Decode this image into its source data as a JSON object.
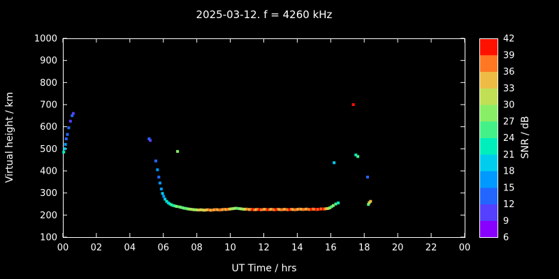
{
  "chart_data": {
    "type": "scatter",
    "title": "2025-03-12. f = 4260 kHz",
    "xlabel": "UT Time / hrs",
    "ylabel": "Virtual height / km",
    "x_range": [
      0,
      24
    ],
    "y_range": [
      100,
      1000
    ],
    "x_tick_values": [
      0,
      2,
      4,
      6,
      8,
      10,
      12,
      14,
      16,
      18,
      20,
      22,
      24
    ],
    "x_tick_labels": [
      "00",
      "02",
      "04",
      "06",
      "08",
      "10",
      "12",
      "14",
      "16",
      "18",
      "20",
      "22",
      "00"
    ],
    "y_tick_values": [
      100,
      200,
      300,
      400,
      500,
      600,
      700,
      800,
      900,
      1000
    ],
    "colors": {
      "background": "#000000",
      "foreground": "#ffffff",
      "frame": "#ffffff"
    },
    "colorbar": {
      "label": "SNR / dB",
      "min": 6,
      "max": 42,
      "step": 3,
      "ticks": [
        42,
        39,
        36,
        33,
        30,
        27,
        24,
        21,
        18,
        15,
        12,
        9,
        6
      ],
      "band_colors": [
        "#8800ff",
        "#5540ff",
        "#2266ff",
        "#0099ff",
        "#00ccee",
        "#00eebb",
        "#44f188",
        "#88ee66",
        "#c0df55",
        "#eebb44",
        "#ff7722",
        "#ff1100"
      ]
    },
    "points": [
      [
        0.05,
        485,
        21
      ],
      [
        0.1,
        500,
        18
      ],
      [
        0.15,
        520,
        15
      ],
      [
        0.2,
        545,
        12
      ],
      [
        0.27,
        565,
        12
      ],
      [
        0.35,
        595,
        12
      ],
      [
        0.45,
        625,
        9
      ],
      [
        0.55,
        650,
        12
      ],
      [
        0.62,
        660,
        9
      ],
      [
        5.15,
        545,
        12
      ],
      [
        5.22,
        538,
        9
      ],
      [
        5.55,
        445,
        12
      ],
      [
        5.65,
        405,
        15
      ],
      [
        5.73,
        372,
        12
      ],
      [
        5.8,
        345,
        15
      ],
      [
        5.88,
        318,
        15
      ],
      [
        5.95,
        298,
        18
      ],
      [
        6.02,
        285,
        15
      ],
      [
        6.1,
        272,
        18
      ],
      [
        6.2,
        262,
        21
      ],
      [
        6.3,
        255,
        18
      ],
      [
        6.4,
        250,
        21
      ],
      [
        6.5,
        246,
        24
      ],
      [
        6.6,
        243,
        21
      ],
      [
        6.7,
        241,
        24
      ],
      [
        6.8,
        239,
        27
      ],
      [
        6.85,
        488,
        27
      ],
      [
        6.95,
        237,
        24
      ],
      [
        7.05,
        235,
        27
      ],
      [
        7.15,
        233,
        24
      ],
      [
        7.25,
        231,
        27
      ],
      [
        7.35,
        230,
        24
      ],
      [
        7.45,
        228,
        27
      ],
      [
        7.55,
        227,
        27
      ],
      [
        7.65,
        226,
        30
      ],
      [
        7.75,
        225,
        27
      ],
      [
        7.85,
        224,
        30
      ],
      [
        7.95,
        224,
        27
      ],
      [
        8.05,
        223,
        30
      ],
      [
        8.15,
        223,
        33
      ],
      [
        8.25,
        224,
        30
      ],
      [
        8.35,
        223,
        33
      ],
      [
        8.45,
        222,
        30
      ],
      [
        8.55,
        223,
        33
      ],
      [
        8.65,
        224,
        33
      ],
      [
        8.75,
        223,
        36
      ],
      [
        8.85,
        222,
        33
      ],
      [
        8.95,
        223,
        36
      ],
      [
        9.05,
        224,
        33
      ],
      [
        9.15,
        225,
        36
      ],
      [
        9.25,
        224,
        33
      ],
      [
        9.35,
        223,
        36
      ],
      [
        9.45,
        224,
        36
      ],
      [
        9.55,
        225,
        33
      ],
      [
        9.65,
        226,
        36
      ],
      [
        9.75,
        225,
        33
      ],
      [
        9.85,
        226,
        36
      ],
      [
        9.95,
        227,
        33
      ],
      [
        10.05,
        228,
        30
      ],
      [
        10.15,
        229,
        27
      ],
      [
        10.25,
        230,
        30
      ],
      [
        10.35,
        231,
        27
      ],
      [
        10.45,
        230,
        24
      ],
      [
        10.55,
        229,
        27
      ],
      [
        10.65,
        228,
        30
      ],
      [
        10.75,
        227,
        27
      ],
      [
        10.85,
        226,
        30
      ],
      [
        10.95,
        227,
        33
      ],
      [
        11.05,
        226,
        36
      ],
      [
        11.15,
        225,
        33
      ],
      [
        11.25,
        226,
        36
      ],
      [
        11.35,
        225,
        39
      ],
      [
        11.45,
        224,
        36
      ],
      [
        11.55,
        225,
        33
      ],
      [
        11.65,
        226,
        36
      ],
      [
        11.75,
        225,
        39
      ],
      [
        11.85,
        224,
        36
      ],
      [
        11.95,
        225,
        36
      ],
      [
        12.05,
        226,
        33
      ],
      [
        12.15,
        225,
        36
      ],
      [
        12.25,
        224,
        39
      ],
      [
        12.35,
        225,
        36
      ],
      [
        12.45,
        226,
        33
      ],
      [
        12.55,
        225,
        36
      ],
      [
        12.65,
        224,
        36
      ],
      [
        12.75,
        225,
        39
      ],
      [
        12.85,
        226,
        36
      ],
      [
        12.95,
        225,
        33
      ],
      [
        13.05,
        224,
        36
      ],
      [
        13.15,
        225,
        36
      ],
      [
        13.25,
        226,
        33
      ],
      [
        13.35,
        225,
        36
      ],
      [
        13.45,
        224,
        36
      ],
      [
        13.55,
        225,
        39
      ],
      [
        13.65,
        226,
        36
      ],
      [
        13.75,
        225,
        33
      ],
      [
        13.85,
        224,
        36
      ],
      [
        13.95,
        225,
        36
      ],
      [
        14.05,
        226,
        33
      ],
      [
        14.15,
        227,
        36
      ],
      [
        14.25,
        226,
        33
      ],
      [
        14.35,
        225,
        36
      ],
      [
        14.45,
        226,
        36
      ],
      [
        14.55,
        227,
        33
      ],
      [
        14.65,
        226,
        36
      ],
      [
        14.75,
        225,
        36
      ],
      [
        14.85,
        226,
        39
      ],
      [
        14.95,
        227,
        36
      ],
      [
        15.05,
        226,
        36
      ],
      [
        15.15,
        225,
        39
      ],
      [
        15.25,
        226,
        36
      ],
      [
        15.35,
        227,
        39
      ],
      [
        15.45,
        228,
        36
      ],
      [
        15.55,
        227,
        39
      ],
      [
        15.65,
        228,
        36
      ],
      [
        15.75,
        229,
        33
      ],
      [
        15.85,
        230,
        30
      ],
      [
        15.95,
        233,
        27
      ],
      [
        16.05,
        238,
        24
      ],
      [
        16.15,
        243,
        27
      ],
      [
        16.3,
        250,
        24
      ],
      [
        16.45,
        255,
        21
      ],
      [
        16.2,
        437,
        18
      ],
      [
        17.35,
        700,
        39
      ],
      [
        17.5,
        472,
        21
      ],
      [
        17.62,
        465,
        24
      ],
      [
        18.2,
        372,
        12
      ],
      [
        18.25,
        248,
        24
      ],
      [
        18.3,
        256,
        30
      ],
      [
        18.38,
        262,
        33
      ]
    ]
  }
}
